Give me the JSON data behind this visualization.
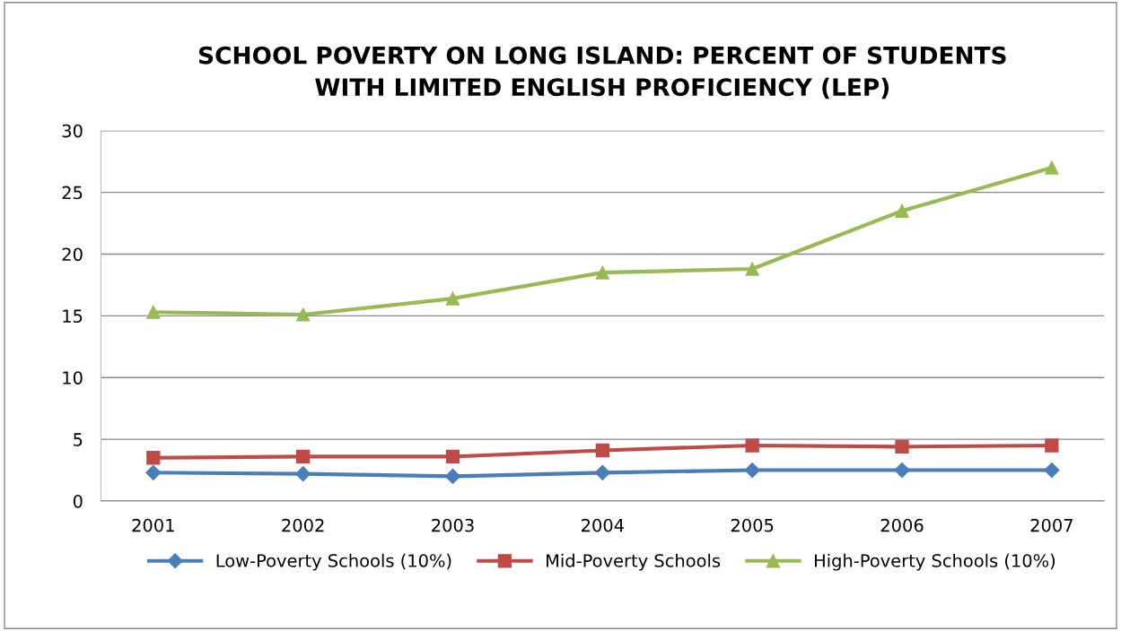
{
  "chart_data": {
    "type": "line",
    "title": "SCHOOL POVERTY ON LONG ISLAND: PERCENT OF STUDENTS\nWITH LIMITED ENGLISH PROFICIENCY (LEP)",
    "categories": [
      "2001",
      "2002",
      "2003",
      "2004",
      "2005",
      "2006",
      "2007"
    ],
    "series": [
      {
        "name": "Low-Poverty Schools (10%)",
        "color": "#4a7ebb",
        "marker": "diamond",
        "values": [
          2.3,
          2.2,
          2.0,
          2.3,
          2.5,
          2.5,
          2.5
        ]
      },
      {
        "name": "Mid-Poverty Schools",
        "color": "#be4b48",
        "marker": "square",
        "values": [
          3.5,
          3.6,
          3.6,
          4.1,
          4.5,
          4.4,
          4.5
        ]
      },
      {
        "name": "High-Poverty Schools (10%)",
        "color": "#98b954",
        "marker": "triangle",
        "values": [
          15.3,
          15.1,
          16.4,
          18.5,
          18.8,
          23.5,
          27.0
        ]
      }
    ],
    "ylim": [
      0,
      30
    ],
    "yticks": [
      0,
      5,
      10,
      15,
      20,
      25,
      30
    ],
    "grid": "y",
    "legend": "bottom",
    "line_style": "solid"
  }
}
